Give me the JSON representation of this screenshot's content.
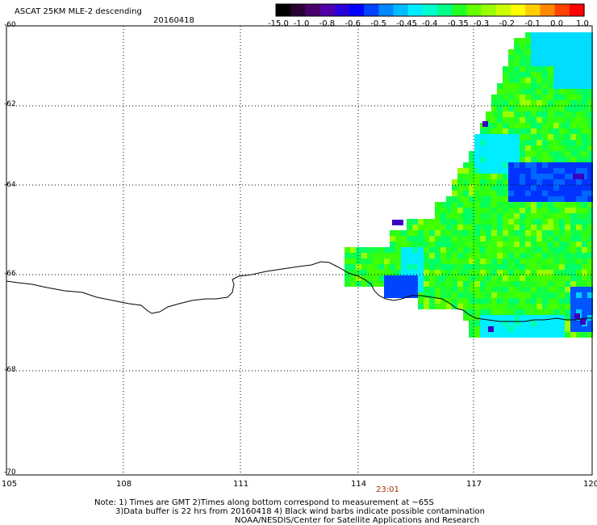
{
  "header": {
    "title": "ASCAT 25KM MLE-2 descending",
    "date": "20160418"
  },
  "colorbar": {
    "labels": [
      "-15.0",
      "-1.0",
      "-0.8",
      "-0.6",
      "-0.5",
      "-0.45",
      "-0.4",
      "-0.35",
      "-0.3",
      "-0.2",
      "-0.1",
      "0.0",
      "1.0"
    ],
    "colors": [
      "#000000",
      "#2a0033",
      "#4a006a",
      "#4f00a8",
      "#2a00d8",
      "#0000ff",
      "#0044ff",
      "#0088ff",
      "#00bbff",
      "#00eeff",
      "#00ffcc",
      "#00ff88",
      "#22ff22",
      "#66ff00",
      "#99ff00",
      "#ccff00",
      "#ffff00",
      "#ffcc00",
      "#ff8800",
      "#ff4400",
      "#ff0000"
    ]
  },
  "axes": {
    "lat_labels": [
      "-60",
      "-62",
      "-64",
      "-66",
      "-68",
      "-70"
    ],
    "lon_labels": [
      "105",
      "108",
      "111",
      "114",
      "117",
      "120"
    ]
  },
  "time_label": "23:01",
  "notes": {
    "line1": "Note: 1) Times are GMT 2)Times along bottom correspond to measurement at ~65S",
    "line2": "3)Data buffer is 22 hrs from 20160418 4) Black wind barbs indicate possible contamination",
    "line3": "NOAA/NESDIS/Center for Satellite Applications and Research"
  }
}
